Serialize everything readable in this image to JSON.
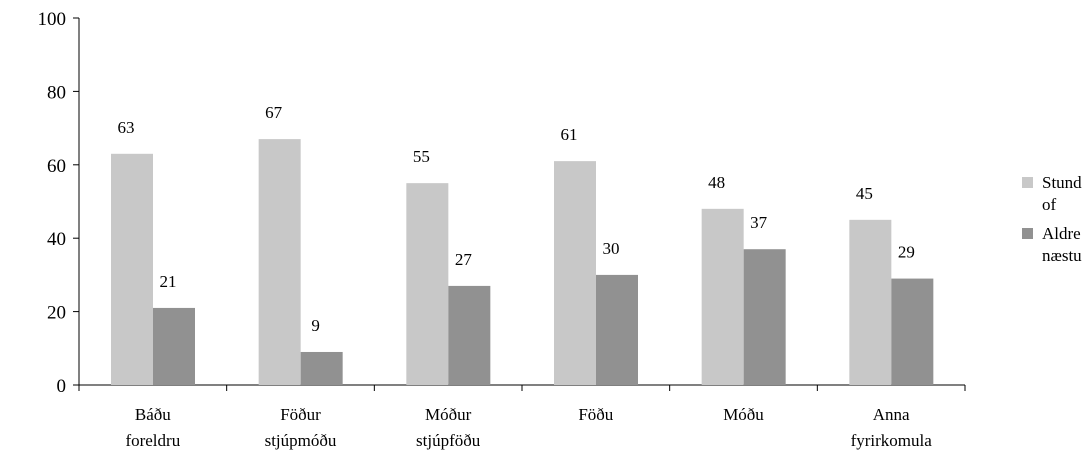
{
  "chart_data": {
    "type": "bar",
    "categories": [
      [
        "Báðu",
        "foreldru"
      ],
      [
        "Föður",
        "stjúpmóðu"
      ],
      [
        "Móður",
        "stjúpföðu"
      ],
      [
        "Föðu"
      ],
      [
        "Móðu"
      ],
      [
        "Anna",
        "fyrirkomula"
      ]
    ],
    "series": [
      {
        "legend_lines": [
          "Stund",
          "of"
        ],
        "values": [
          63,
          67,
          55,
          61,
          48,
          45
        ],
        "color": "#c8c8c8"
      },
      {
        "legend_lines": [
          "Aldre",
          "næstu"
        ],
        "values": [
          21,
          9,
          27,
          30,
          37,
          29
        ],
        "color": "#919191"
      }
    ],
    "data_labels": [
      [
        "63",
        "67",
        "55",
        "61",
        "48",
        "45"
      ],
      [
        "21",
        "9",
        "27",
        "30",
        "37",
        "29"
      ]
    ],
    "yticks": [
      "0",
      "20",
      "40",
      "60",
      "80",
      "100"
    ],
    "ylim": [
      0,
      100
    ],
    "grid": false,
    "legend": "right"
  }
}
